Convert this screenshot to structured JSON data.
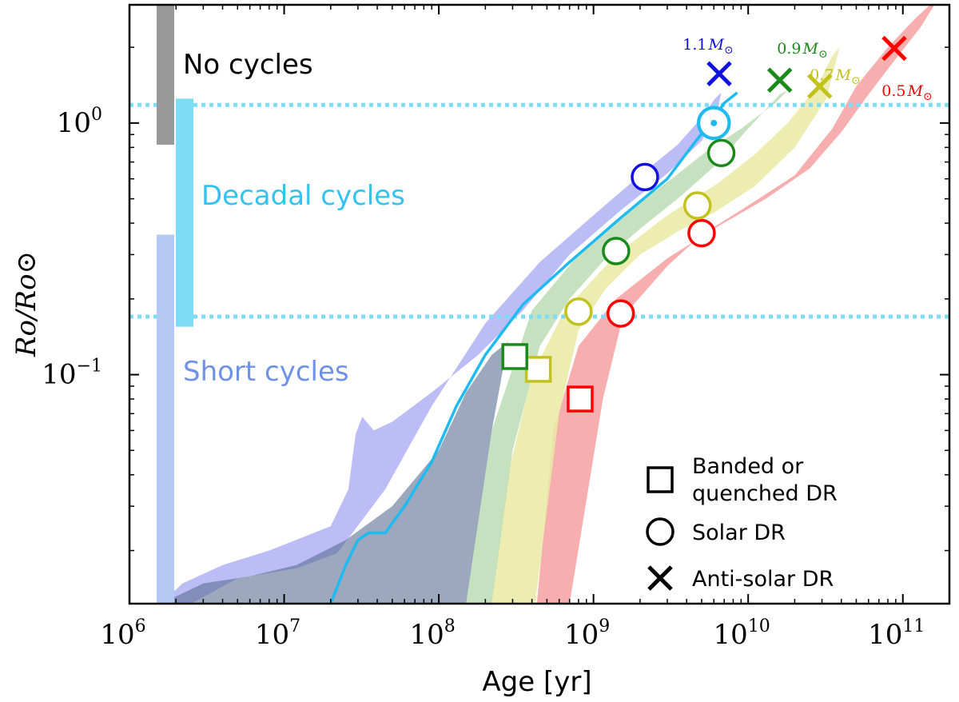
{
  "chart_data": {
    "type": "scatter",
    "xlabel": "Age [yr]",
    "ylabel": "Ro/Ro⊙",
    "xscale": "log",
    "yscale": "log",
    "xlim": [
      1000000,
      200000000000
    ],
    "ylim": [
      0.0123,
      2.95
    ],
    "x_ticks": [
      {
        "value": 1000000,
        "base": "10",
        "exp": "6"
      },
      {
        "value": 10000000,
        "base": "10",
        "exp": "7"
      },
      {
        "value": 100000000,
        "base": "10",
        "exp": "8"
      },
      {
        "value": 1000000000,
        "base": "10",
        "exp": "9"
      },
      {
        "value": 10000000000,
        "base": "10",
        "exp": "10"
      },
      {
        "value": 100000000000,
        "base": "10",
        "exp": "11"
      }
    ],
    "y_ticks": [
      {
        "value": 0.1,
        "base": "10",
        "exp": "−1"
      },
      {
        "value": 1.0,
        "base": "10",
        "exp": "0"
      }
    ],
    "reference_lines": {
      "color": "#7fdcf5",
      "y": [
        1.18,
        0.17
      ]
    },
    "regimes": [
      {
        "name": "No cycles",
        "color": "#999999",
        "text_color": "#000000",
        "y_range": [
          0.82,
          2.95
        ]
      },
      {
        "name": "Decadal cycles",
        "color": "#7fdcf5",
        "text_color": "#33c3ee",
        "y_range": [
          0.155,
          1.25
        ]
      },
      {
        "name": "Short cycles",
        "color": "#b5c9f5",
        "text_color": "#6f92e8",
        "y_range": [
          0.0123,
          0.36
        ]
      }
    ],
    "series": [
      {
        "name": "0.5M⊙",
        "label_main": "0.5",
        "label_sub": "⊙",
        "color": "#ff0000",
        "band_color": "#f4a0a0",
        "band": [
          [
            700000000.0,
            0.0123
          ],
          [
            1150000000.0,
            0.08
          ],
          [
            1550000000.0,
            0.17
          ],
          [
            3000000000.0,
            0.27
          ],
          [
            5000000000.0,
            0.36
          ],
          [
            10000000000.0,
            0.47
          ],
          [
            20000000000.0,
            0.62
          ],
          [
            35000000000.0,
            0.95
          ],
          [
            50000000000.0,
            1.4
          ],
          [
            80000000000.0,
            2.0
          ],
          [
            120000000000.0,
            2.6
          ],
          [
            150000000000.0,
            2.95
          ],
          [
            160000000000.0,
            2.95
          ],
          [
            130000000000.0,
            2.4
          ],
          [
            90000000000.0,
            1.8
          ],
          [
            60000000000.0,
            1.3
          ],
          [
            40000000000.0,
            0.92
          ],
          [
            25000000000.0,
            0.66
          ],
          [
            13000000000.0,
            0.5
          ],
          [
            6000000000.0,
            0.38
          ],
          [
            3000000000.0,
            0.29
          ],
          [
            1400000000.0,
            0.2
          ],
          [
            800000000.0,
            0.13
          ],
          [
            550000000.0,
            0.06
          ],
          [
            430000000.0,
            0.0123
          ]
        ],
        "points": [
          {
            "marker": "square",
            "age": 820000000,
            "ro": 0.08
          },
          {
            "marker": "circle",
            "age": 1500000000,
            "ro": 0.175
          },
          {
            "marker": "circle",
            "age": 5000000000,
            "ro": 0.365
          },
          {
            "marker": "x",
            "age": 88000000000,
            "ro": 1.98
          }
        ]
      },
      {
        "name": "0.7M⊙",
        "label_main": "0.7",
        "label_sub": "⊙",
        "color": "#c2c21c",
        "band_color": "#eaeaa4",
        "band": [
          [
            420000000.0,
            0.0123
          ],
          [
            600000000.0,
            0.07
          ],
          [
            800000000.0,
            0.15
          ],
          [
            1200000000.0,
            0.22
          ],
          [
            2000000000.0,
            0.3
          ],
          [
            3500000000.0,
            0.37
          ],
          [
            6000000000.0,
            0.44
          ],
          [
            11000000000.0,
            0.56
          ],
          [
            20000000000.0,
            0.8
          ],
          [
            32000000000.0,
            1.25
          ],
          [
            39000000000.0,
            2.0
          ],
          [
            35000000000.0,
            1.85
          ],
          [
            28000000000.0,
            1.4
          ],
          [
            18000000000.0,
            1.0
          ],
          [
            11000000000.0,
            0.75
          ],
          [
            6500000000.0,
            0.58
          ],
          [
            3000000000.0,
            0.43
          ],
          [
            1400000000.0,
            0.3
          ],
          [
            650000000.0,
            0.18
          ],
          [
            400000000.0,
            0.1
          ],
          [
            280000000.0,
            0.04
          ],
          [
            220000000.0,
            0.0123
          ]
        ],
        "points": [
          {
            "marker": "square",
            "age": 440000000,
            "ro": 0.105
          },
          {
            "marker": "circle",
            "age": 800000000,
            "ro": 0.178
          },
          {
            "marker": "circle",
            "age": 4700000000,
            "ro": 0.47
          },
          {
            "marker": "x",
            "age": 29000000000,
            "ro": 1.4
          }
        ]
      },
      {
        "name": "0.9M⊙",
        "label_main": "0.9",
        "label_sub": "⊙",
        "color": "#1a8a1a",
        "band_color": "#bcdcb4",
        "band": [
          [
            220000000.0,
            0.0123
          ],
          [
            300000000.0,
            0.05
          ],
          [
            450000000.0,
            0.13
          ],
          [
            700000000.0,
            0.2
          ],
          [
            1200000000.0,
            0.29
          ],
          [
            2000000000.0,
            0.38
          ],
          [
            3500000000.0,
            0.5
          ],
          [
            6000000000.0,
            0.67
          ],
          [
            10000000000.0,
            0.95
          ],
          [
            16000000000.0,
            1.3
          ],
          [
            18000000000.0,
            1.35
          ],
          [
            15000000000.0,
            1.2
          ],
          [
            9000000000.0,
            0.95
          ],
          [
            5500000000.0,
            0.78
          ],
          [
            3200000000.0,
            0.6
          ],
          [
            1700000000.0,
            0.45
          ],
          [
            800000000.0,
            0.3
          ],
          [
            400000000.0,
            0.18
          ],
          [
            220000000.0,
            0.06
          ],
          [
            150000000.0,
            0.0123
          ]
        ],
        "points": [
          {
            "marker": "square",
            "age": 310000000,
            "ro": 0.118
          },
          {
            "marker": "circle",
            "age": 1400000000,
            "ro": 0.31
          },
          {
            "marker": "circle",
            "age": 6700000000,
            "ro": 0.76
          },
          {
            "marker": "x",
            "age": 16000000000,
            "ro": 1.48
          }
        ]
      },
      {
        "name": "1.1M⊙",
        "label_main": "1.1",
        "label_sub": "⊙",
        "color": "#1010e0",
        "band_color": "#b0b0f5",
        "band": [
          [
            1600000.0,
            0.0123
          ],
          [
            2200000.0,
            0.0148
          ],
          [
            4000000.0,
            0.0175
          ],
          [
            8000000.0,
            0.02
          ],
          [
            20000000.0,
            0.025
          ],
          [
            26000000.0,
            0.035
          ],
          [
            29000000.0,
            0.058
          ],
          [
            32000000.0,
            0.068
          ],
          [
            38000000.0,
            0.06
          ],
          [
            50000000.0,
            0.065
          ],
          [
            90000000.0,
            0.085
          ],
          [
            180000000.0,
            0.12
          ],
          [
            350000000.0,
            0.18
          ],
          [
            700000000.0,
            0.3
          ],
          [
            1500000000.0,
            0.45
          ],
          [
            3000000000.0,
            0.63
          ],
          [
            5000000000.0,
            0.85
          ],
          [
            6300000000.0,
            1.1
          ],
          [
            6700000000.0,
            1.32
          ],
          [
            6100000000.0,
            1.25
          ],
          [
            5000000000.0,
            1.05
          ],
          [
            3500000000.0,
            0.82
          ],
          [
            2000000000.0,
            0.62
          ],
          [
            1000000000.0,
            0.43
          ],
          [
            450000000.0,
            0.28
          ],
          [
            200000000.0,
            0.16
          ],
          [
            90000000.0,
            0.075
          ],
          [
            45000000.0,
            0.035
          ],
          [
            22000000.0,
            0.0195
          ],
          [
            12000000.0,
            0.017
          ],
          [
            5000000.0,
            0.0155
          ],
          [
            2500000.0,
            0.0123
          ]
        ],
        "points": [
          {
            "marker": "circle",
            "age": 2150000000,
            "ro": 0.61
          },
          {
            "marker": "x",
            "age": 6500000000,
            "ro": 1.57
          }
        ]
      }
    ],
    "overlap_region": {
      "color": "#5a6e92",
      "polygon": [
        [
          1600000.0,
          0.0123
        ],
        [
          3000000.0,
          0.0148
        ],
        [
          6000000.0,
          0.0158
        ],
        [
          12000000.0,
          0.0175
        ],
        [
          25000000.0,
          0.022
        ],
        [
          50000000.0,
          0.03
        ],
        [
          100000000.0,
          0.05
        ],
        [
          150000000.0,
          0.085
        ],
        [
          220000000.0,
          0.12
        ],
        [
          280000000.0,
          0.135
        ],
        [
          220000000.0,
          0.06
        ],
        [
          150000000.0,
          0.0123
        ]
      ]
    },
    "solar_track": {
      "name": "Sun",
      "color": "#1fbaf0",
      "points": [
        [
          20000000.0,
          0.0123
        ],
        [
          25000000.0,
          0.0175
        ],
        [
          30000000.0,
          0.022
        ],
        [
          35000000.0,
          0.0235
        ],
        [
          45000000.0,
          0.0235
        ],
        [
          60000000.0,
          0.03
        ],
        [
          90000000.0,
          0.045
        ],
        [
          130000000.0,
          0.075
        ],
        [
          200000000.0,
          0.12
        ],
        [
          350000000.0,
          0.19
        ],
        [
          700000000.0,
          0.28
        ],
        [
          1500000000.0,
          0.42
        ],
        [
          3000000000.0,
          0.6
        ],
        [
          4600000000.0,
          0.85
        ],
        [
          5700000000.0,
          1.0
        ],
        [
          7000000000.0,
          1.2
        ],
        [
          8500000000.0,
          1.32
        ]
      ],
      "marker": {
        "marker": "circle",
        "age": 6000000000,
        "ro": 1.0
      }
    },
    "legend": [
      {
        "marker": "square",
        "line1": "Banded or",
        "line2": "quenched DR"
      },
      {
        "marker": "circle",
        "line1": "Solar DR",
        "line2": ""
      },
      {
        "marker": "x",
        "line1": "Anti-solar DR",
        "line2": ""
      }
    ]
  }
}
